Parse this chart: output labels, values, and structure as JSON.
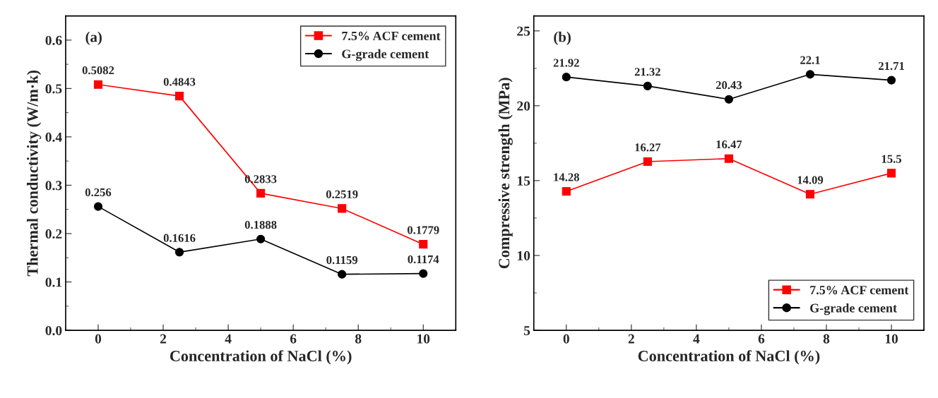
{
  "chart_data": [
    {
      "type": "line",
      "annotations": [
        "(a)"
      ],
      "xlabel": "Concentration of NaCl (%)",
      "ylabel": "Thermal conductivity (W/m·k)",
      "x": [
        0,
        2.5,
        5,
        7.5,
        10
      ],
      "xlim": [
        -1,
        11
      ],
      "xticks": [
        0,
        2,
        4,
        6,
        8,
        10
      ],
      "ylim": [
        0,
        0.65
      ],
      "yticks": [
        {
          "value": 0,
          "label": "0.0"
        },
        0.1,
        0.2,
        0.3,
        0.4,
        0.5,
        0.6
      ],
      "legend": "top right",
      "data_labels": true,
      "grid": false,
      "series": [
        {
          "name": "7.5% ACF cement",
          "color": "#ff0000",
          "marker": "square",
          "values": [
            0.5082,
            0.4843,
            0.2833,
            0.2519,
            0.1779
          ]
        },
        {
          "name": "G-grade cement",
          "color": "#000000",
          "marker": "circle",
          "values": [
            0.256,
            0.1616,
            0.1888,
            0.1159,
            0.1174
          ]
        }
      ]
    },
    {
      "type": "line",
      "annotations": [
        "(b)"
      ],
      "xlabel": "Concentration of NaCl (%)",
      "ylabel": "Compressive strength (MPa)",
      "x": [
        0,
        2.5,
        5,
        7.5,
        10
      ],
      "xlim": [
        -1,
        11
      ],
      "xticks": [
        0,
        2,
        4,
        6,
        8,
        10
      ],
      "ylim": [
        5,
        26
      ],
      "yticks": [
        5,
        10,
        15,
        20,
        25
      ],
      "legend": "bottom right",
      "data_labels": true,
      "grid": false,
      "series": [
        {
          "name": "7.5% ACF cement",
          "color": "#ff0000",
          "marker": "square",
          "values": [
            14.28,
            16.27,
            16.47,
            14.09,
            15.5
          ]
        },
        {
          "name": "G-grade cement",
          "color": "#000000",
          "marker": "circle",
          "values": [
            21.92,
            21.32,
            20.43,
            22.1,
            21.71
          ]
        }
      ]
    }
  ]
}
